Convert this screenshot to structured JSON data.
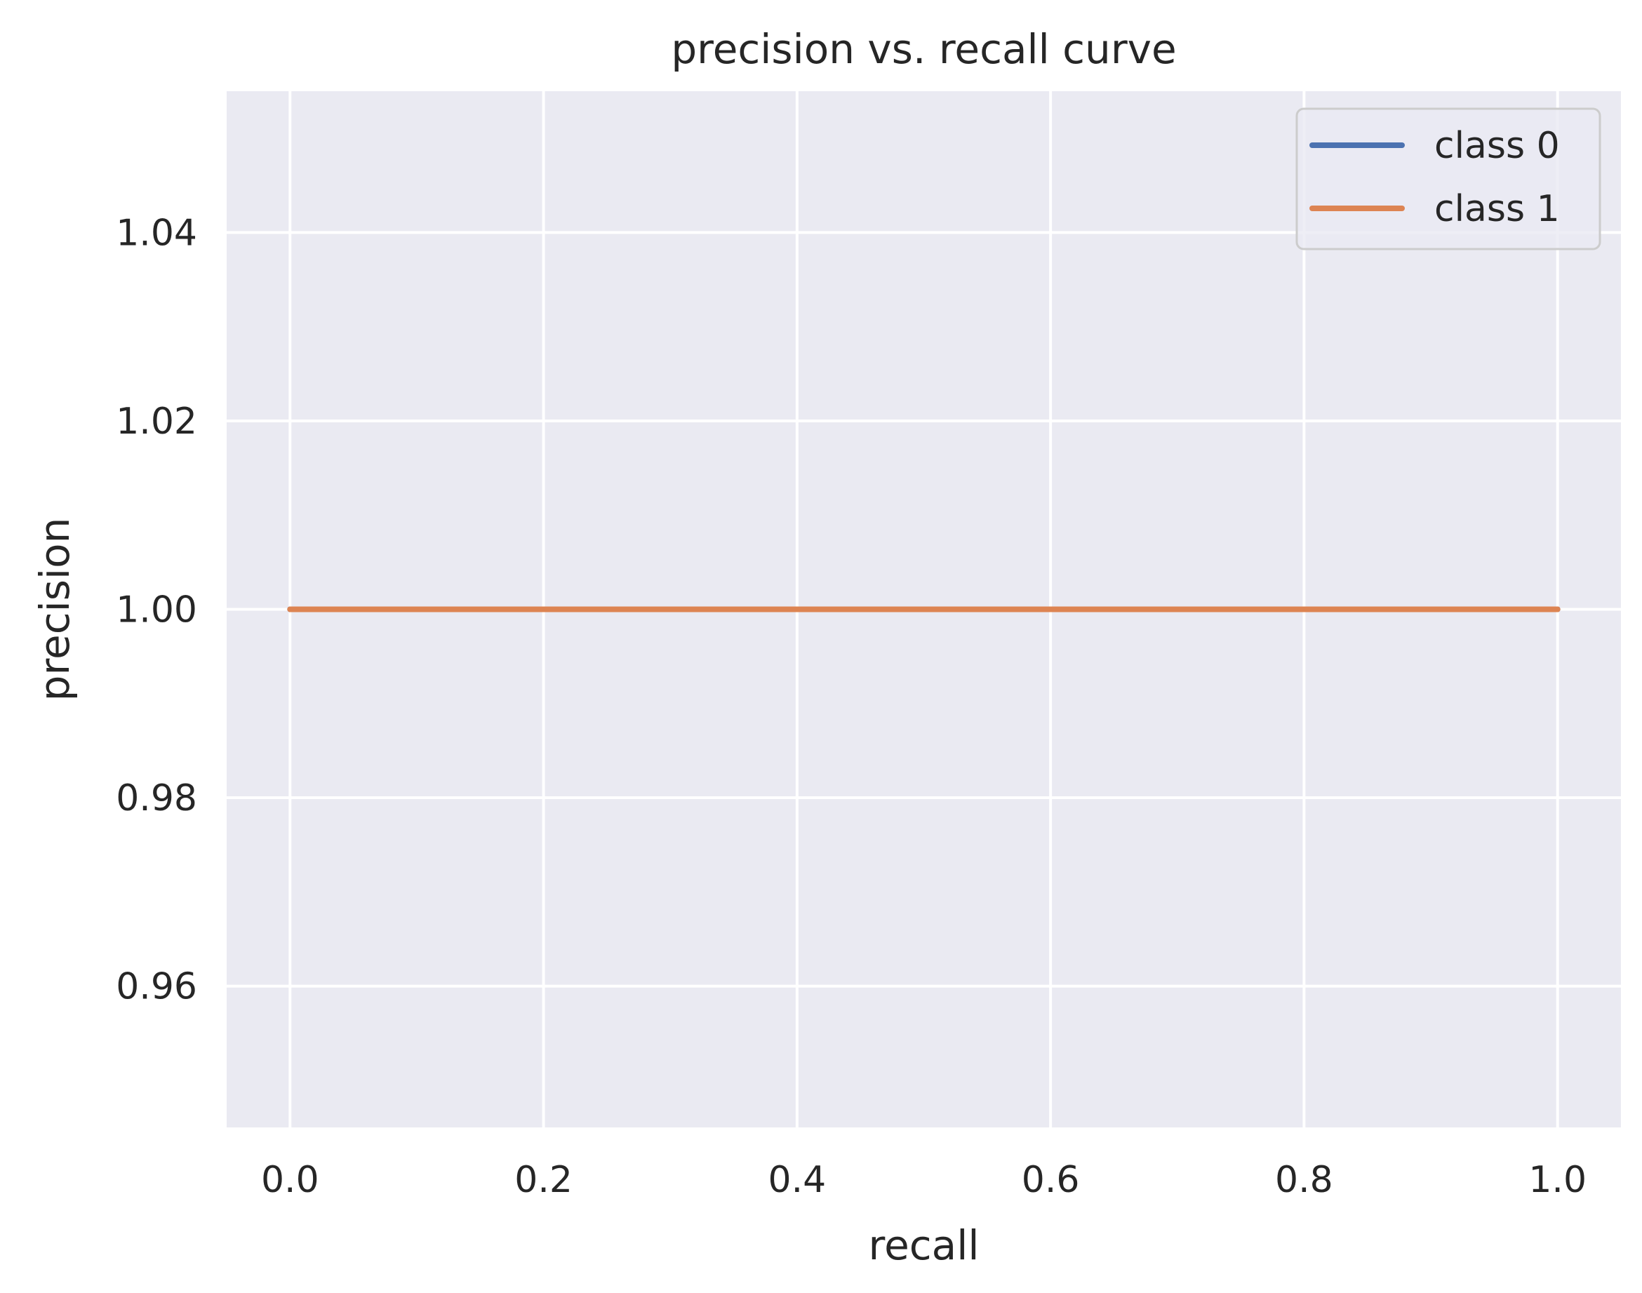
{
  "chart_data": {
    "type": "line",
    "title": "precision vs. recall curve",
    "xlabel": "recall",
    "ylabel": "precision",
    "xlim": [
      -0.05,
      1.05
    ],
    "ylim": [
      0.945,
      1.055
    ],
    "xticks": [
      0.0,
      0.2,
      0.4,
      0.6,
      0.8,
      1.0
    ],
    "xtick_labels": [
      "0.0",
      "0.2",
      "0.4",
      "0.6",
      "0.8",
      "1.0"
    ],
    "yticks": [
      0.96,
      0.98,
      1.0,
      1.02,
      1.04
    ],
    "ytick_labels": [
      "0.96",
      "0.98",
      "1.00",
      "1.02",
      "1.04"
    ],
    "grid": true,
    "legend_position": "top-right",
    "series": [
      {
        "name": "class 0",
        "color": "#4c72b0",
        "x": [
          0.0,
          1.0
        ],
        "y": [
          1.0,
          1.0
        ]
      },
      {
        "name": "class 1",
        "color": "#dd8452",
        "x": [
          0.0,
          1.0
        ],
        "y": [
          1.0,
          1.0
        ]
      }
    ],
    "colors": {
      "plot_background": "#eaeaf2",
      "grid": "#ffffff",
      "text": "#262626"
    }
  }
}
